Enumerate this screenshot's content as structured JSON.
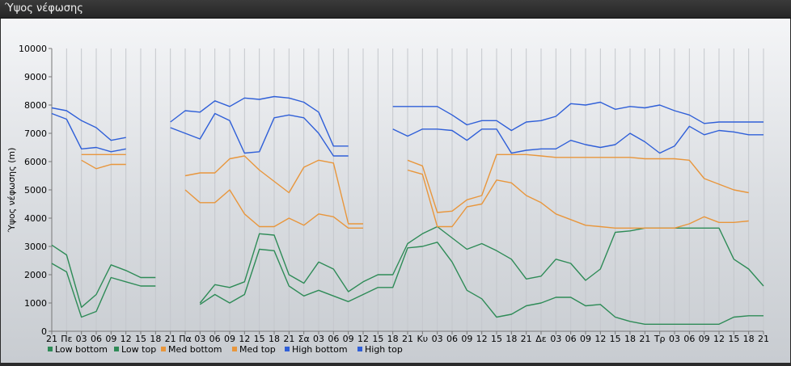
{
  "window": {
    "title": "Ύψος νέφωσης"
  },
  "chart_data": {
    "type": "line",
    "title": "",
    "xlabel": "",
    "ylabel": "Ύψος νέφωσης (m)",
    "ylim": [
      0,
      10000
    ],
    "yticks": [
      0,
      1000,
      2000,
      3000,
      4000,
      5000,
      6000,
      7000,
      8000,
      9000,
      10000
    ],
    "grid": "vertical",
    "legend_position": "bottom-left",
    "categories": [
      "21",
      "Πε",
      "03",
      "06",
      "09",
      "12",
      "15",
      "18",
      "21",
      "Πα",
      "03",
      "06",
      "09",
      "12",
      "15",
      "18",
      "21",
      "Σα",
      "03",
      "06",
      "09",
      "12",
      "15",
      "18",
      "21",
      "Κυ",
      "03",
      "06",
      "09",
      "12",
      "15",
      "18",
      "21",
      "Δε",
      "03",
      "06",
      "09",
      "12",
      "15",
      "18",
      "21",
      "Τρ",
      "03",
      "06",
      "09",
      "12",
      "15",
      "18",
      "21"
    ],
    "series": [
      {
        "name": "Low bottom",
        "color": "#2e8b57",
        "values": [
          2400,
          2100,
          500,
          700,
          1900,
          1750,
          1600,
          1600,
          null,
          null,
          950,
          1300,
          1000,
          1300,
          2900,
          2850,
          1600,
          1250,
          1450,
          1250,
          1050,
          1300,
          1550,
          1550,
          2950,
          3000,
          3150,
          2450,
          1450,
          1150,
          500,
          600,
          900,
          1000,
          1200,
          1200,
          900,
          950,
          500,
          350,
          250,
          250,
          250,
          250,
          250,
          250,
          500,
          550,
          550
        ]
      },
      {
        "name": "Low top",
        "color": "#2e8b57",
        "values": [
          3050,
          2700,
          850,
          1300,
          2350,
          2150,
          1900,
          1900,
          null,
          null,
          1000,
          1650,
          1550,
          1750,
          3450,
          3400,
          2000,
          1700,
          2450,
          2200,
          1400,
          1750,
          2000,
          2000,
          3100,
          3450,
          3700,
          3300,
          2900,
          3100,
          2850,
          2550,
          1850,
          1950,
          2550,
          2400,
          1800,
          2200,
          3500,
          3550,
          3650,
          3650,
          3650,
          3650,
          3650,
          3650,
          2550,
          2200,
          1600
        ]
      },
      {
        "name": "Med bottom",
        "color": "#e8963c",
        "values": [
          null,
          null,
          6050,
          5750,
          5900,
          5900,
          null,
          null,
          null,
          5000,
          4550,
          4550,
          5000,
          4150,
          3700,
          3700,
          4000,
          3750,
          4150,
          4050,
          3650,
          3650,
          null,
          null,
          5700,
          5550,
          3700,
          3700,
          4400,
          4500,
          5350,
          5250,
          4800,
          4550,
          4150,
          3950,
          3750,
          3700,
          3650,
          3650,
          3650,
          3650,
          3650,
          3800,
          4050,
          3850,
          3850,
          3900,
          null
        ]
      },
      {
        "name": "Med top",
        "color": "#e8963c",
        "values": [
          null,
          null,
          6250,
          6250,
          6250,
          6250,
          null,
          null,
          null,
          5500,
          5600,
          5600,
          6100,
          6200,
          5700,
          5300,
          4900,
          5800,
          6050,
          5950,
          3800,
          3800,
          null,
          null,
          6050,
          5850,
          4200,
          4250,
          4650,
          4800,
          6250,
          6250,
          6250,
          6200,
          6150,
          6150,
          6150,
          6150,
          6150,
          6150,
          6100,
          6100,
          6100,
          6050,
          5400,
          5200,
          5000,
          4900,
          null
        ]
      },
      {
        "name": "High bottom",
        "color": "#2f5fd8",
        "values": [
          7700,
          7500,
          6450,
          6500,
          6350,
          6450,
          null,
          null,
          7200,
          7000,
          6800,
          7700,
          7450,
          6300,
          6350,
          7550,
          7650,
          7550,
          7000,
          6200,
          6200,
          null,
          null,
          7150,
          6900,
          7150,
          7150,
          7100,
          6750,
          7150,
          7150,
          6300,
          6400,
          6450,
          6450,
          6750,
          6600,
          6500,
          6600,
          7000,
          6700,
          6300,
          6550,
          7250,
          6950,
          7100,
          7050,
          6950,
          6950
        ]
      },
      {
        "name": "High top",
        "color": "#2f5fd8",
        "values": [
          7900,
          7800,
          7450,
          7200,
          6750,
          6850,
          null,
          null,
          7400,
          7800,
          7750,
          8150,
          7950,
          8250,
          8200,
          8300,
          8250,
          8100,
          7750,
          6550,
          6550,
          null,
          null,
          7950,
          7950,
          7950,
          7950,
          7650,
          7300,
          7450,
          7450,
          7100,
          7400,
          7450,
          7600,
          8050,
          8000,
          8100,
          7850,
          7950,
          7900,
          8000,
          7800,
          7650,
          7350,
          7400,
          7400,
          7400,
          7400
        ]
      }
    ]
  }
}
